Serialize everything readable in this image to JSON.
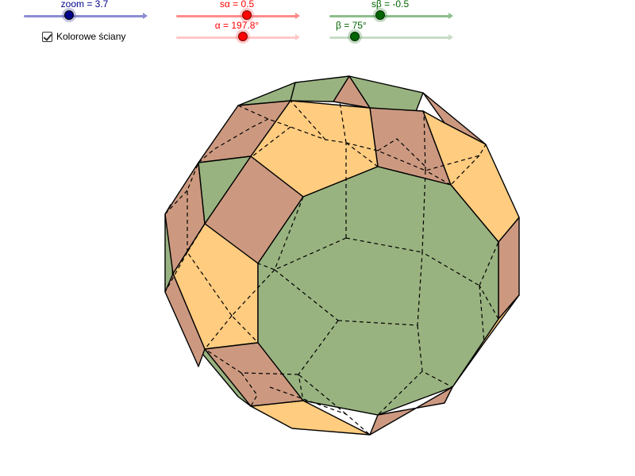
{
  "sliders": [
    {
      "id": "zoom",
      "label": "zoom = 3.7",
      "value": 3.7,
      "fraction": 0.37,
      "color": "#00008b",
      "track": "#8c8cd2",
      "halo": "#5a5aa8"
    },
    {
      "id": "s-alpha",
      "label": "sα = 0.5",
      "value": 0.5,
      "fraction": 0.58,
      "color": "#ff0000",
      "track": "#ff8c8c",
      "halo": "#ff6a6a"
    },
    {
      "id": "alpha",
      "label": "α = 197.8°",
      "value": 197.8,
      "fraction": 0.55,
      "color": "#ff0000",
      "track": "#ffc8c8",
      "halo": "#ff6a6a"
    },
    {
      "id": "s-beta",
      "label": "sβ = -0.5",
      "value": -0.5,
      "fraction": 0.42,
      "color": "#006400",
      "track": "#8cbf8c",
      "halo": "#5a965a"
    },
    {
      "id": "beta",
      "label": "β = 75°",
      "value": 75,
      "fraction": 0.21,
      "color": "#006400",
      "track": "#c8dcc8",
      "halo": "#5a965a"
    }
  ],
  "checkbox": {
    "label": "Kolorowe ściany",
    "checked": true
  },
  "face_colors": {
    "pentagon": "#ffcc80",
    "square": "#cc9980",
    "triangle": "#99b380",
    "edge": "#000000"
  }
}
